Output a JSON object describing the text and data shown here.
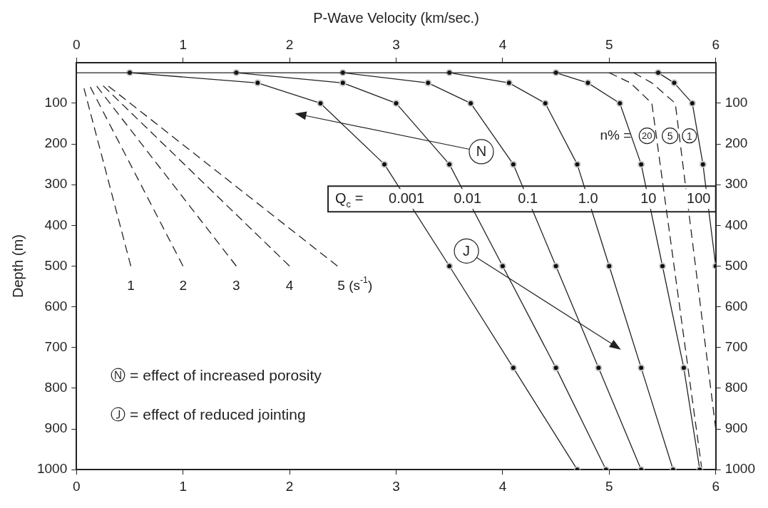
{
  "chart_data": {
    "type": "line",
    "x2label": "P-Wave Velocity (km/sec.)",
    "ylabel": "Depth (m)",
    "xlim": [
      0,
      6
    ],
    "xticks": [
      0,
      1,
      2,
      3,
      4,
      5,
      6
    ],
    "x2lim": [
      0,
      6
    ],
    "x2ticks": [
      0,
      1,
      2,
      3,
      4,
      5,
      6
    ],
    "ylim": [
      1000,
      0
    ],
    "yticks": [
      100,
      200,
      300,
      400,
      500,
      600,
      700,
      800,
      900,
      1000
    ],
    "y2lim": [
      1000,
      0
    ],
    "y2ticks": [
      100,
      200,
      300,
      400,
      500,
      600,
      700,
      800,
      900,
      1000
    ],
    "grid": false,
    "legend": "top right",
    "marker": "circle",
    "line_style": "solid",
    "ref_lines": [
      {
        "axis": "y",
        "value": 25
      }
    ],
    "series": [
      {
        "name": "1",
        "color": "#222222",
        "marker": "none",
        "line_style": "dashed",
        "x": [
          0.07,
          0.51
        ],
        "values": [
          63,
          500
        ]
      },
      {
        "name": "2",
        "color": "#222222",
        "marker": "none",
        "line_style": "dashed",
        "x": [
          0.13,
          1.0
        ],
        "values": [
          60,
          500
        ]
      },
      {
        "name": "3",
        "color": "#222222",
        "marker": "none",
        "line_style": "dashed",
        "x": [
          0.19,
          1.5
        ],
        "values": [
          58,
          500
        ]
      },
      {
        "name": "4",
        "color": "#222222",
        "marker": "none",
        "line_style": "dashed",
        "x": [
          0.25,
          2.0
        ],
        "values": [
          57,
          500
        ]
      },
      {
        "name": "5 (s$^{-1}$)",
        "color": "#222222",
        "marker": "none",
        "line_style": "dashed",
        "x": [
          0.3,
          2.45
        ],
        "values": [
          58,
          500
        ]
      },
      {
        "name": "0.001",
        "color": "#222222",
        "x": [
          0.5,
          1.7,
          2.29,
          2.89,
          3.5,
          4.1,
          4.7
        ],
        "values": [
          25,
          50,
          100,
          250,
          500,
          750,
          1000
        ]
      },
      {
        "name": "0.01",
        "color": "#222222",
        "x": [
          1.5,
          2.5,
          3.0,
          3.5,
          4.0,
          4.5,
          4.97
        ],
        "values": [
          25,
          50,
          100,
          250,
          500,
          750,
          1000
        ]
      },
      {
        "name": "0.1",
        "color": "#222222",
        "x": [
          2.5,
          3.3,
          3.7,
          4.1,
          4.5,
          4.9,
          5.3
        ],
        "values": [
          25,
          50,
          100,
          250,
          500,
          750,
          1000
        ]
      },
      {
        "name": "1.0",
        "color": "#222222",
        "x": [
          3.5,
          4.06,
          4.4,
          4.7,
          5.0,
          5.3,
          5.6
        ],
        "values": [
          25,
          50,
          100,
          250,
          500,
          750,
          1000
        ]
      },
      {
        "name": "10",
        "color": "#222222",
        "x": [
          4.5,
          4.8,
          5.1,
          5.3,
          5.5,
          5.7,
          5.85
        ],
        "values": [
          25,
          50,
          100,
          250,
          500,
          750,
          1000
        ]
      },
      {
        "name": "100",
        "color": "#222222",
        "x": [
          5.46,
          5.61,
          5.78,
          5.88,
          6.0
        ],
        "values": [
          25,
          50,
          100,
          250,
          500
        ]
      },
      {
        "name": "20",
        "color": "#222222",
        "marker": "none",
        "line_style": "dashed",
        "x": [
          5.0,
          5.2,
          5.4,
          5.87
        ],
        "values": [
          25,
          50,
          100,
          1000
        ]
      },
      {
        "name": "5",
        "color": "#222222",
        "marker": "none",
        "line_style": "dashed",
        "x": [
          5.23,
          5.4,
          5.62,
          6.0
        ],
        "values": [
          25,
          50,
          100,
          900
        ]
      }
    ],
    "annotations": [
      "Q$_{c}$ =",
      "n% =",
      "1",
      {
        "text": "N",
        "x": 3.8,
        "y": 219
      },
      {
        "text": "J",
        "x": 3.66,
        "y": 463
      },
      "Ⓝ = effect of increased porosity",
      "Ⓙ = effect of reduced jointing"
    ]
  }
}
